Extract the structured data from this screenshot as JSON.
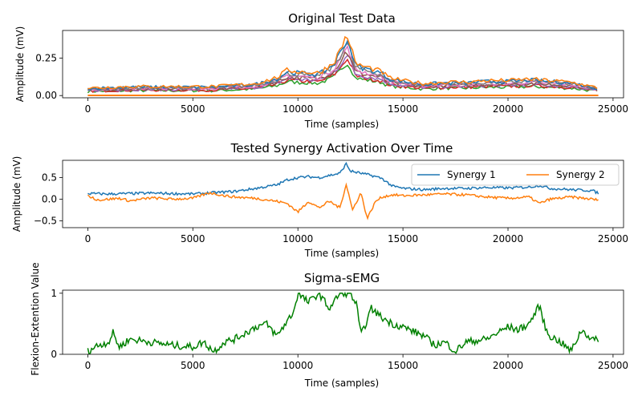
{
  "chart_data": [
    {
      "type": "line",
      "title": "Original Test Data",
      "xlabel": "Time (samples)",
      "ylabel": "Amplitude (mV)",
      "xlim": [
        -1200,
        25500
      ],
      "ylim": [
        -0.015,
        0.435
      ],
      "xticks": [
        0,
        5000,
        10000,
        15000,
        20000,
        25000
      ],
      "yticks": [
        0.0,
        0.25
      ],
      "ytick_labels": [
        "0.00",
        "0.25"
      ],
      "legend": null,
      "n_channels": 8,
      "channel_colors": [
        "#1f77b4",
        "#ff7f0e",
        "#2ca02c",
        "#d62728",
        "#9467bd",
        "#8c564b",
        "#e377c2",
        "#7f7f7f"
      ],
      "envelope": {
        "x": [
          0,
          2000,
          4000,
          6000,
          8000,
          9000,
          9500,
          10000,
          11000,
          11700,
          12000,
          12300,
          12500,
          12700,
          13000,
          13500,
          14000,
          14300,
          15000,
          16000,
          17000,
          18000,
          19000,
          20000,
          21000,
          22000,
          23000,
          24300
        ],
        "y": [
          0.05,
          0.06,
          0.06,
          0.06,
          0.08,
          0.12,
          0.17,
          0.16,
          0.15,
          0.22,
          0.3,
          0.4,
          0.35,
          0.22,
          0.2,
          0.18,
          0.16,
          0.12,
          0.1,
          0.08,
          0.09,
          0.09,
          0.1,
          0.1,
          0.11,
          0.1,
          0.09,
          0.05
        ]
      }
    },
    {
      "type": "line",
      "title": "Tested Synergy Activation Over Time",
      "xlabel": "Time (samples)",
      "ylabel": "Amplitude (mV)",
      "xlim": [
        -1200,
        25500
      ],
      "ylim": [
        -0.66,
        0.9
      ],
      "xticks": [
        0,
        5000,
        10000,
        15000,
        20000,
        25000
      ],
      "yticks": [
        -0.5,
        0.0,
        0.5
      ],
      "ytick_labels": [
        "−0.5",
        "0.0",
        "0.5"
      ],
      "legend": "top-right",
      "series": [
        {
          "name": "Synergy 1",
          "color": "#1f77b4",
          "x": [
            0,
            1000,
            2000,
            3000,
            4000,
            5000,
            6000,
            7000,
            8000,
            9000,
            9500,
            10000,
            10500,
            11000,
            11500,
            12000,
            12300,
            12500,
            13000,
            13500,
            14000,
            14500,
            15000,
            16000,
            17000,
            18000,
            19000,
            20000,
            21000,
            21500,
            22000,
            23000,
            24000,
            24300
          ],
          "y": [
            0.13,
            0.12,
            0.13,
            0.14,
            0.13,
            0.12,
            0.15,
            0.18,
            0.25,
            0.33,
            0.45,
            0.5,
            0.52,
            0.5,
            0.55,
            0.6,
            0.82,
            0.65,
            0.6,
            0.55,
            0.48,
            0.3,
            0.25,
            0.22,
            0.25,
            0.25,
            0.27,
            0.26,
            0.28,
            0.32,
            0.25,
            0.22,
            0.2,
            0.14
          ]
        },
        {
          "name": "Synergy 2",
          "color": "#ff7f0e",
          "x": [
            0,
            500,
            1500,
            2000,
            3000,
            4000,
            5000,
            5800,
            6500,
            7000,
            8000,
            9000,
            9500,
            10000,
            10500,
            11000,
            11500,
            12000,
            12300,
            12600,
            13000,
            13300,
            13700,
            14000,
            14500,
            15000,
            16000,
            17000,
            18000,
            19000,
            20000,
            21000,
            21500,
            22000,
            23000,
            24000,
            24300
          ],
          "y": [
            0.08,
            -0.02,
            0.02,
            -0.04,
            0.03,
            0.0,
            0.02,
            0.15,
            0.08,
            0.05,
            0.02,
            -0.05,
            -0.1,
            -0.3,
            -0.05,
            -0.2,
            -0.05,
            -0.2,
            0.35,
            -0.25,
            0.15,
            -0.45,
            -0.05,
            0.05,
            0.1,
            0.08,
            0.1,
            0.12,
            0.1,
            0.05,
            0.02,
            0.05,
            -0.1,
            0.0,
            0.05,
            0.0,
            -0.02
          ]
        }
      ]
    },
    {
      "type": "line",
      "title": "Sigma-sEMG",
      "xlabel": "Time (samples)",
      "ylabel": "Flexion-Extention Value",
      "xlim": [
        -1200,
        25500
      ],
      "ylim": [
        0,
        1.05
      ],
      "xticks": [
        0,
        5000,
        10000,
        15000,
        20000,
        25000
      ],
      "yticks": [
        0,
        1
      ],
      "ytick_labels": [
        "0",
        "1"
      ],
      "legend": null,
      "series": [
        {
          "color": "#008000",
          "x": [
            0,
            500,
            1000,
            1200,
            1500,
            2000,
            3000,
            4000,
            5000,
            5500,
            6000,
            6500,
            7000,
            7500,
            8000,
            8500,
            9000,
            9500,
            9800,
            10000,
            10500,
            11000,
            11500,
            12000,
            12500,
            12800,
            13000,
            13500,
            14000,
            14500,
            15000,
            16000,
            16500,
            17000,
            17500,
            18000,
            19000,
            19500,
            20000,
            20500,
            21000,
            21500,
            21800,
            22000,
            22500,
            23000,
            23500,
            24000,
            24300
          ],
          "y": [
            0.05,
            0.15,
            0.2,
            0.35,
            0.12,
            0.25,
            0.2,
            0.15,
            0.12,
            0.2,
            0.05,
            0.2,
            0.25,
            0.35,
            0.45,
            0.5,
            0.3,
            0.55,
            0.7,
            1.0,
            0.85,
            1.0,
            0.75,
            1.0,
            1.0,
            0.8,
            0.3,
            0.75,
            0.6,
            0.5,
            0.45,
            0.3,
            0.15,
            0.2,
            0.05,
            0.2,
            0.25,
            0.35,
            0.45,
            0.4,
            0.5,
            0.8,
            0.4,
            0.3,
            0.2,
            0.05,
            0.4,
            0.25,
            0.22
          ]
        }
      ]
    }
  ]
}
